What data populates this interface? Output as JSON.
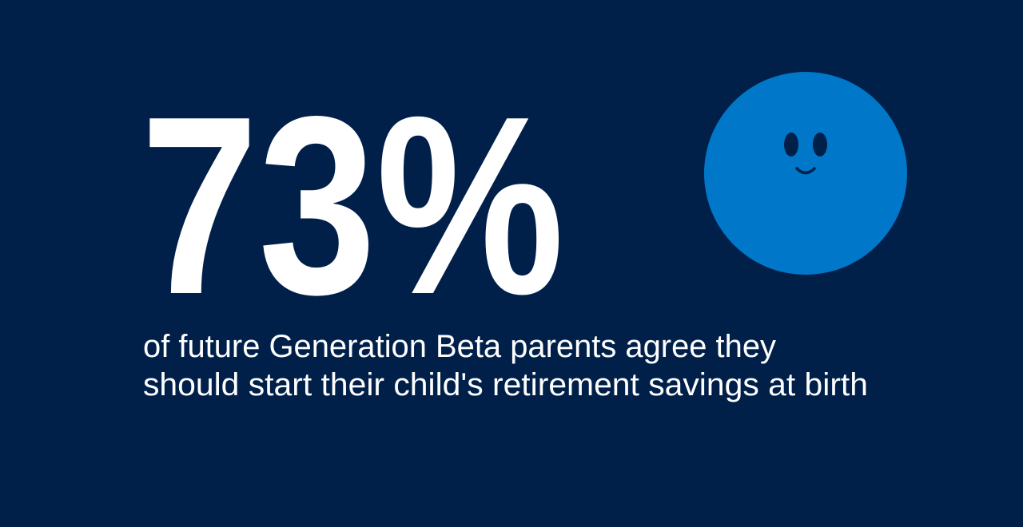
{
  "stat": "73%",
  "description": {
    "lines": [
      "of future Generation Beta parents agree they",
      "should start their child's retirement savings at birth"
    ]
  }
}
